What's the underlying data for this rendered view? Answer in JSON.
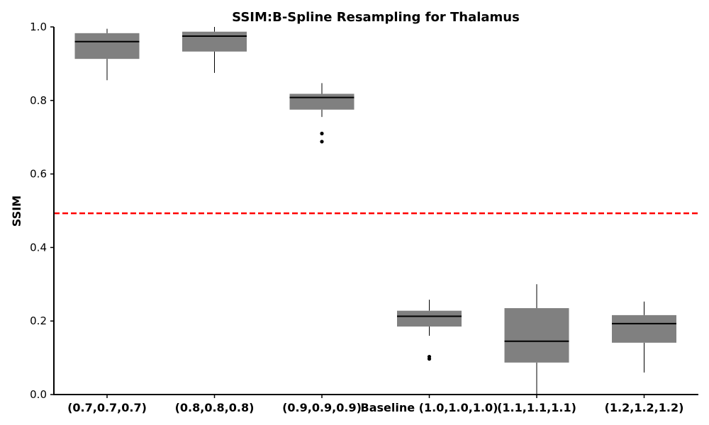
{
  "chart_data": {
    "type": "box",
    "title": "SSIM:B-Spline Resampling for Thalamus",
    "xlabel": "",
    "ylabel": "SSIM",
    "ylim": [
      0.0,
      1.0
    ],
    "yticks": [
      0.0,
      0.2,
      0.4,
      0.6,
      0.8,
      1.0
    ],
    "ytick_labels": [
      "0.0",
      "0.2",
      "0.4",
      "0.6",
      "0.8",
      "1.0"
    ],
    "grid": false,
    "box_color": "#808080",
    "median_color": "#000000",
    "reference_line": {
      "value": 0.493,
      "color": "#ff0000",
      "style": "dashed"
    },
    "categories": [
      "(0.7,0.7,0.7)",
      "(0.8,0.8,0.8)",
      "(0.9,0.9,0.9)",
      "Baseline (1.0,1.0,1.0)",
      "(1.1,1.1,1.1)",
      "(1.2,1.2,1.2)"
    ],
    "boxes": [
      {
        "category": "(0.7,0.7,0.7)",
        "whisker_low": 0.855,
        "q1": 0.913,
        "median": 0.96,
        "q3": 0.983,
        "whisker_high": 0.995,
        "outliers": []
      },
      {
        "category": "(0.8,0.8,0.8)",
        "whisker_low": 0.875,
        "q1": 0.933,
        "median": 0.975,
        "q3": 0.987,
        "whisker_high": 1.0,
        "outliers": []
      },
      {
        "category": "(0.9,0.9,0.9)",
        "whisker_low": 0.755,
        "q1": 0.775,
        "median": 0.808,
        "q3": 0.818,
        "whisker_high": 0.847,
        "outliers": [
          0.71,
          0.688
        ]
      },
      {
        "category": "Baseline (1.0,1.0,1.0)",
        "whisker_low": 0.16,
        "q1": 0.185,
        "median": 0.213,
        "q3": 0.228,
        "whisker_high": 0.258,
        "outliers": [
          0.103,
          0.097
        ]
      },
      {
        "category": "(1.1,1.1,1.1)",
        "whisker_low": 0.0,
        "q1": 0.087,
        "median": 0.145,
        "q3": 0.235,
        "whisker_high": 0.3,
        "outliers": []
      },
      {
        "category": "(1.2,1.2,1.2)",
        "whisker_low": 0.06,
        "q1": 0.141,
        "median": 0.193,
        "q3": 0.216,
        "whisker_high": 0.253,
        "outliers": []
      }
    ]
  }
}
